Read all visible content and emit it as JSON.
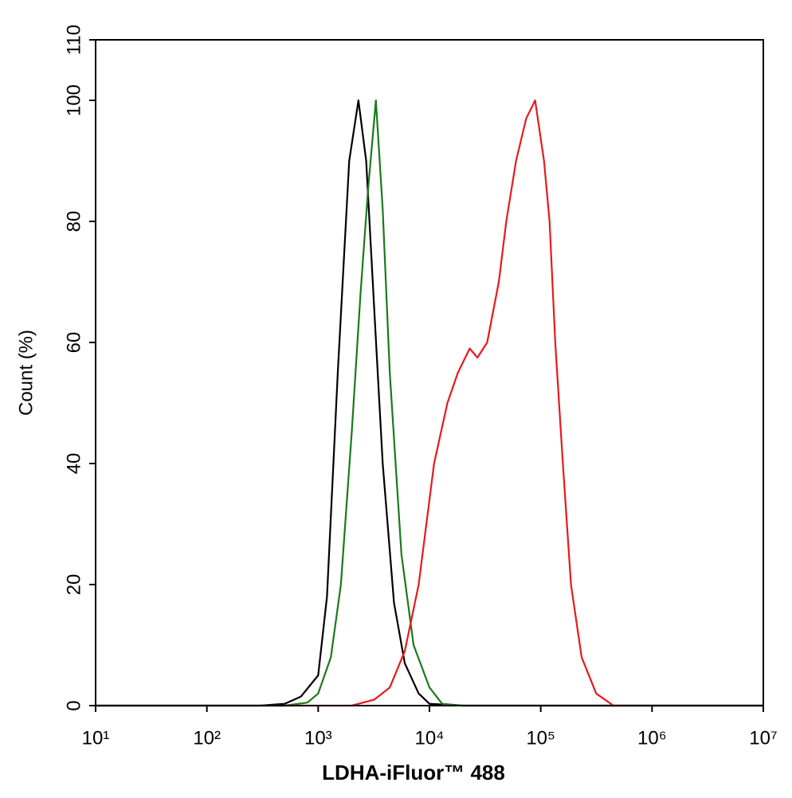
{
  "chart_data": {
    "type": "line",
    "x_label": "LDHA-iFluor™ 488",
    "y_label": "Count  (%)",
    "xscale": "log",
    "xlim": [
      10,
      10000000
    ],
    "xticks": [
      {
        "value": 10,
        "label": "10¹"
      },
      {
        "value": 100,
        "label": "10²"
      },
      {
        "value": 1000,
        "label": "10³"
      },
      {
        "value": 10000,
        "label": "10⁴"
      },
      {
        "value": 100000,
        "label": "10⁵"
      },
      {
        "value": 1000000,
        "label": "10⁶"
      },
      {
        "value": 10000000,
        "label": "10⁷"
      }
    ],
    "ylim": [
      0,
      110
    ],
    "yticks": [
      0,
      20,
      40,
      60,
      80,
      100,
      110
    ],
    "series": [
      {
        "color": "#000000",
        "x": [
          10,
          300,
          500,
          700,
          1000,
          1200,
          1500,
          1900,
          2300,
          2700,
          3200,
          3800,
          4800,
          6000,
          8000,
          10000,
          20000,
          10000000
        ],
        "values": [
          0,
          0,
          0.3,
          1.5,
          5,
          18,
          55,
          90,
          100,
          90,
          65,
          40,
          17,
          7,
          2,
          0.3,
          0,
          0
        ]
      },
      {
        "color": "#1a7a1a",
        "x": [
          10,
          500,
          800,
          1000,
          1300,
          1600,
          2000,
          2400,
          2800,
          3300,
          3800,
          4400,
          5600,
          7200,
          10000,
          13000,
          20000,
          10000000
        ],
        "values": [
          0,
          0,
          0.5,
          2,
          8,
          20,
          45,
          68,
          85,
          100,
          82,
          55,
          25,
          10,
          3,
          0.3,
          0,
          0
        ]
      },
      {
        "color": "#e8191c",
        "x": [
          10,
          2000,
          3200,
          4400,
          6000,
          8000,
          11000,
          14500,
          18000,
          23000,
          27000,
          33000,
          42000,
          49000,
          60000,
          74000,
          89000,
          107000,
          120000,
          135000,
          158000,
          187000,
          233000,
          315000,
          450000,
          10000000
        ],
        "values": [
          0,
          0,
          1,
          3,
          9,
          20,
          40,
          50,
          55,
          59,
          57.5,
          60,
          70,
          80,
          90,
          97,
          100,
          90,
          80,
          60,
          40,
          20,
          8,
          2,
          0,
          0
        ]
      }
    ]
  }
}
